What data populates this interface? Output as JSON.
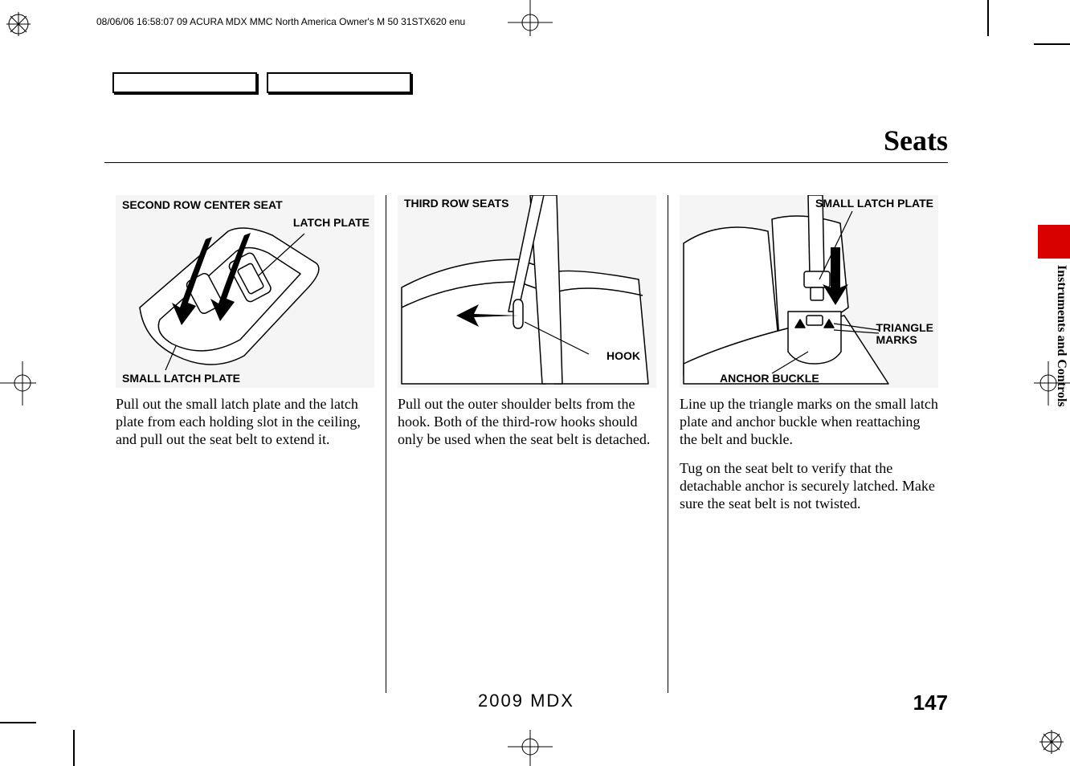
{
  "print_meta": "08/06/06 16:58:07   09 ACURA MDX MMC North America Owner's M 50 31STX620 enu",
  "header": {
    "title": "Seats"
  },
  "side_tab_label": "Instruments and Controls",
  "side_tab_color": "#d90000",
  "columns": {
    "col1": {
      "labels": {
        "title": "SECOND ROW CENTER SEAT",
        "latch_plate": "LATCH PLATE",
        "small_latch_plate": "SMALL LATCH PLATE"
      },
      "text": "Pull out the small latch plate and the latch plate from each holding slot in the ceiling, and pull out the seat belt to extend it."
    },
    "col2": {
      "labels": {
        "title": "THIRD ROW SEATS",
        "hook": "HOOK"
      },
      "text": "Pull out the outer shoulder belts from the hook. Both of the third-row hooks should only be used when the seat belt is detached."
    },
    "col3": {
      "labels": {
        "small_latch_plate": "SMALL LATCH PLATE",
        "triangle_marks": "TRIANGLE MARKS",
        "anchor_buckle": "ANCHOR BUCKLE"
      },
      "text1": "Line up the triangle marks on the small latch plate and anchor buckle when reattaching the belt and buckle.",
      "text2": "Tug on the seat belt to verify that the detachable anchor is securely latched. Make sure the seat belt is not twisted."
    }
  },
  "footer": {
    "model": "2009  MDX",
    "page_number": "147"
  },
  "illustration": {
    "background": "#f5f5f5",
    "line_color": "#000000",
    "line_width": 1.5
  },
  "typography": {
    "header_title_size_pt": 27,
    "body_size_pt": 13.5,
    "label_size_pt": 10.5,
    "footer_model_size_pt": 16.5,
    "page_number_size_pt": 20
  }
}
